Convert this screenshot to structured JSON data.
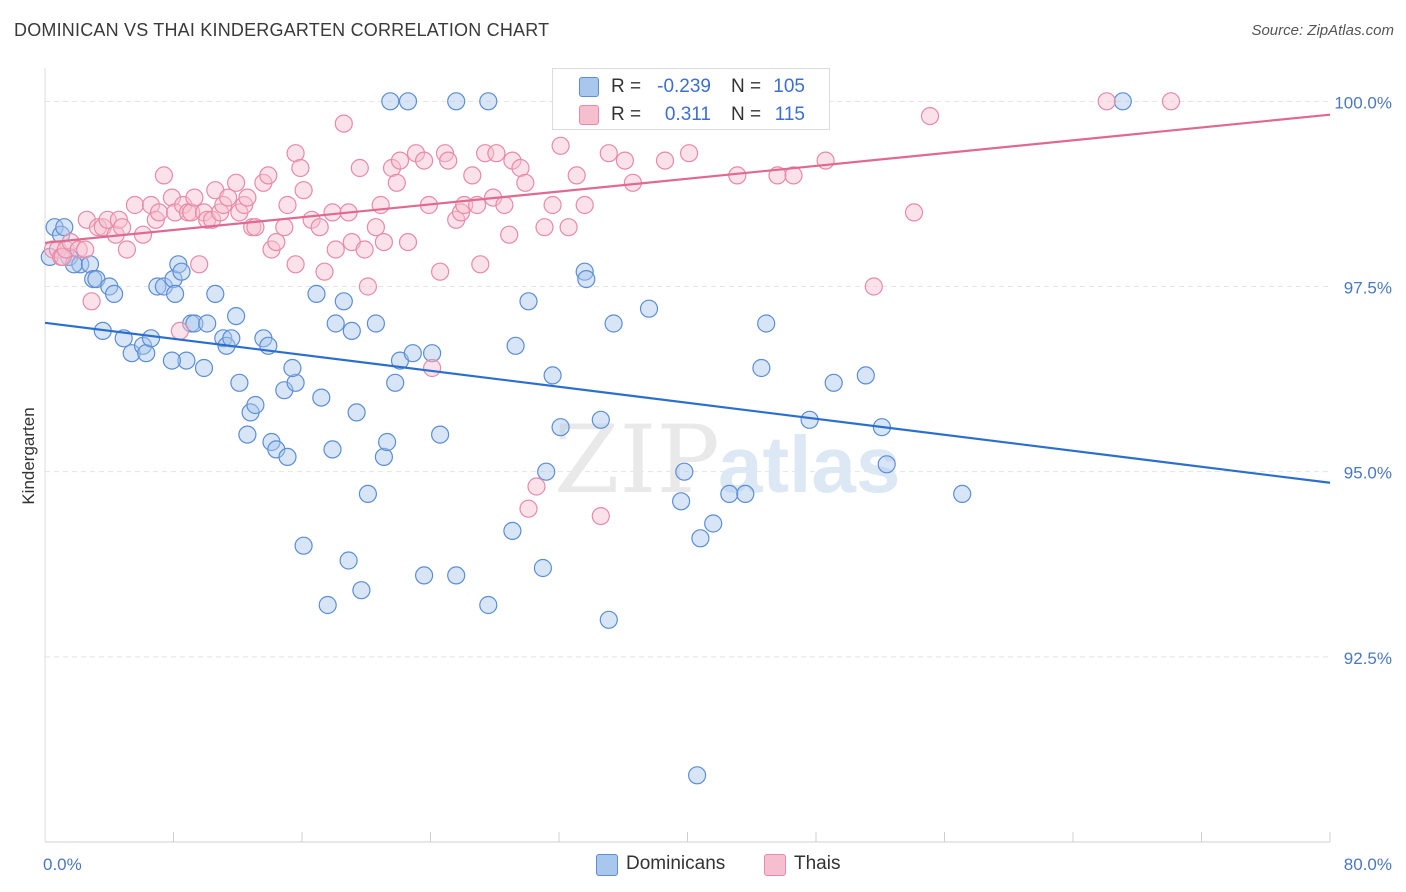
{
  "header": {
    "title": "DOMINICAN VS THAI KINDERGARTEN CORRELATION CHART",
    "source": "Source: ZipAtlas.com"
  },
  "watermark": {
    "zip": "ZIP",
    "atlas": "atlas"
  },
  "legend_stats": {
    "rows": [
      {
        "r_label": "R =",
        "r_value": "-0.239",
        "n_label": "N =",
        "n_value": "105"
      },
      {
        "r_label": "R =",
        "r_value": "0.311",
        "n_label": "N =",
        "n_value": "115"
      }
    ]
  },
  "legend": {
    "items": [
      "Dominicans",
      "Thais"
    ]
  },
  "colors": {
    "blue_fill": "#a9c6ec",
    "blue_stroke": "#5b8ed6",
    "blue_line": "#2a6fd0",
    "pink_fill": "#f6bfd0",
    "pink_stroke": "#e88aa8",
    "pink_line": "#e06992",
    "tick_label": "#4a78c2",
    "grid": "#e4e4e4",
    "value_text": "#3d6fcf"
  },
  "chart_data": {
    "type": "scatter",
    "title": "DOMINICAN VS THAI KINDERGARTEN CORRELATION CHART",
    "ylabel": "Kindergarten",
    "xlabel": "",
    "xlim": [
      0,
      80
    ],
    "ylim": [
      90.0,
      100.45
    ],
    "x_tick_labels": [
      {
        "value": 0,
        "label": "0.0%"
      },
      {
        "value": 80,
        "label": "80.0%"
      }
    ],
    "y_tick_labels": [
      {
        "value": 100,
        "label": "100.0%"
      },
      {
        "value": 97.5,
        "label": "97.5%"
      },
      {
        "value": 95,
        "label": "95.0%"
      },
      {
        "value": 92.5,
        "label": "92.5%"
      }
    ],
    "grid": true,
    "legend_position": "bottom-center",
    "series": [
      {
        "name": "Dominicans",
        "r": -0.239,
        "n": 105,
        "trend": {
          "x": [
            0,
            80
          ],
          "y": [
            97.01,
            94.85
          ]
        },
        "points": [
          [
            0.3,
            97.9
          ],
          [
            0.6,
            98.3
          ],
          [
            1,
            98.2
          ],
          [
            1.2,
            98.3
          ],
          [
            1.5,
            97.9
          ],
          [
            2.2,
            97.8
          ],
          [
            1.8,
            97.8
          ],
          [
            2.8,
            97.8
          ],
          [
            3,
            97.6
          ],
          [
            3.2,
            97.6
          ],
          [
            4,
            97.5
          ],
          [
            4.3,
            97.4
          ],
          [
            3.6,
            96.9
          ],
          [
            4.9,
            96.8
          ],
          [
            5.4,
            96.6
          ],
          [
            6.1,
            96.7
          ],
          [
            6.3,
            96.6
          ],
          [
            7,
            97.5
          ],
          [
            7.4,
            97.5
          ],
          [
            8,
            97.6
          ],
          [
            8.1,
            97.4
          ],
          [
            8.3,
            97.8
          ],
          [
            8.5,
            97.7
          ],
          [
            8.8,
            96.5
          ],
          [
            9.1,
            97
          ],
          [
            9.3,
            97
          ],
          [
            10.1,
            97
          ],
          [
            9.9,
            96.4
          ],
          [
            10.6,
            97.4
          ],
          [
            11.1,
            96.8
          ],
          [
            11.3,
            96.7
          ],
          [
            11.6,
            96.8
          ],
          [
            12.1,
            96.2
          ],
          [
            12.6,
            95.5
          ],
          [
            12.8,
            95.8
          ],
          [
            13.1,
            95.9
          ],
          [
            13.6,
            96.8
          ],
          [
            13.9,
            96.7
          ],
          [
            14.1,
            95.4
          ],
          [
            14.4,
            95.3
          ],
          [
            14.9,
            96.1
          ],
          [
            15.1,
            95.2
          ],
          [
            15.6,
            96.2
          ],
          [
            15.4,
            96.4
          ],
          [
            16.1,
            94
          ],
          [
            16.9,
            97.4
          ],
          [
            17.2,
            96
          ],
          [
            17.6,
            93.2
          ],
          [
            17.9,
            95.3
          ],
          [
            18.1,
            97
          ],
          [
            18.6,
            97.3
          ],
          [
            18.9,
            93.8
          ],
          [
            19.1,
            96.9
          ],
          [
            19.4,
            95.8
          ],
          [
            19.7,
            93.4
          ],
          [
            20.1,
            94.7
          ],
          [
            20.6,
            97
          ],
          [
            21.1,
            95.2
          ],
          [
            21.3,
            95.4
          ],
          [
            21.8,
            96.2
          ],
          [
            22.1,
            96.5
          ],
          [
            22.9,
            96.6
          ],
          [
            23.6,
            93.6
          ],
          [
            24.1,
            96.6
          ],
          [
            24.6,
            95.5
          ],
          [
            25.6,
            93.6
          ],
          [
            27.6,
            93.2
          ],
          [
            29.1,
            94.2
          ],
          [
            29.3,
            96.7
          ],
          [
            30.1,
            97.3
          ],
          [
            31,
            93.7
          ],
          [
            31.2,
            95
          ],
          [
            31.6,
            96.3
          ],
          [
            32.1,
            95.6
          ],
          [
            33.6,
            97.7
          ],
          [
            33.7,
            97.6
          ],
          [
            34.6,
            95.7
          ],
          [
            35.1,
            93
          ],
          [
            35.4,
            97
          ],
          [
            37.6,
            97.2
          ],
          [
            39.6,
            94.6
          ],
          [
            39.8,
            95
          ],
          [
            40.6,
            90.9
          ],
          [
            40.8,
            94.1
          ],
          [
            41.6,
            94.3
          ],
          [
            42.6,
            94.7
          ],
          [
            43.6,
            94.7
          ],
          [
            44.6,
            96.4
          ],
          [
            44.9,
            97
          ],
          [
            47.6,
            95.7
          ],
          [
            49.1,
            96.2
          ],
          [
            51.1,
            96.3
          ],
          [
            52.1,
            95.6
          ],
          [
            52.4,
            95.1
          ],
          [
            57.1,
            94.7
          ],
          [
            21.5,
            100
          ],
          [
            22.6,
            100
          ],
          [
            25.6,
            100
          ],
          [
            27.6,
            100
          ],
          [
            67.1,
            100
          ],
          [
            6.6,
            96.8
          ],
          [
            7.9,
            96.5
          ],
          [
            11.9,
            97.1
          ]
        ]
      },
      {
        "name": "Thais",
        "r": 0.311,
        "n": 115,
        "trend": {
          "x": [
            0,
            80
          ],
          "y": [
            98.09,
            99.82
          ]
        },
        "points": [
          [
            0.5,
            98
          ],
          [
            0.8,
            98
          ],
          [
            1,
            97.9
          ],
          [
            1.1,
            97.9
          ],
          [
            1.3,
            98
          ],
          [
            1.6,
            98.1
          ],
          [
            2.1,
            98
          ],
          [
            2.5,
            98
          ],
          [
            2.6,
            98.4
          ],
          [
            2.9,
            97.3
          ],
          [
            3.3,
            98.3
          ],
          [
            3.6,
            98.3
          ],
          [
            3.9,
            98.4
          ],
          [
            4.4,
            98.2
          ],
          [
            4.6,
            98.4
          ],
          [
            4.8,
            98.3
          ],
          [
            5.1,
            98
          ],
          [
            5.6,
            98.6
          ],
          [
            6.1,
            98.2
          ],
          [
            6.6,
            98.6
          ],
          [
            6.9,
            98.4
          ],
          [
            7.1,
            98.5
          ],
          [
            7.4,
            99
          ],
          [
            7.9,
            98.7
          ],
          [
            8.1,
            98.5
          ],
          [
            8.4,
            96.9
          ],
          [
            8.6,
            98.6
          ],
          [
            8.9,
            98.5
          ],
          [
            9.1,
            98.5
          ],
          [
            9.3,
            98.7
          ],
          [
            9.6,
            97.8
          ],
          [
            9.9,
            98.5
          ],
          [
            10.1,
            98.4
          ],
          [
            10.4,
            98.4
          ],
          [
            10.6,
            98.8
          ],
          [
            10.9,
            98.5
          ],
          [
            11.1,
            98.6
          ],
          [
            11.4,
            98.7
          ],
          [
            11.9,
            98.9
          ],
          [
            12.1,
            98.5
          ],
          [
            12.4,
            98.6
          ],
          [
            12.6,
            98.7
          ],
          [
            12.9,
            98.3
          ],
          [
            13.1,
            98.3
          ],
          [
            13.6,
            98.9
          ],
          [
            13.9,
            99
          ],
          [
            14.1,
            98
          ],
          [
            14.4,
            98.1
          ],
          [
            14.9,
            98.3
          ],
          [
            15.1,
            98.6
          ],
          [
            15.6,
            97.8
          ],
          [
            15.6,
            99.3
          ],
          [
            15.9,
            99.1
          ],
          [
            16.1,
            98.8
          ],
          [
            16.6,
            98.4
          ],
          [
            17.1,
            98.3
          ],
          [
            17.4,
            97.7
          ],
          [
            17.9,
            98.5
          ],
          [
            18.1,
            98
          ],
          [
            18.6,
            99.7
          ],
          [
            18.9,
            98.5
          ],
          [
            19.1,
            98.1
          ],
          [
            19.6,
            99.1
          ],
          [
            19.9,
            98
          ],
          [
            20.1,
            97.5
          ],
          [
            20.6,
            98.3
          ],
          [
            20.9,
            98.6
          ],
          [
            21.1,
            98.1
          ],
          [
            21.6,
            99.1
          ],
          [
            21.9,
            98.9
          ],
          [
            22.1,
            99.2
          ],
          [
            22.6,
            98.1
          ],
          [
            23.1,
            99.3
          ],
          [
            23.6,
            99.2
          ],
          [
            23.9,
            98.6
          ],
          [
            24.1,
            96.4
          ],
          [
            24.6,
            97.7
          ],
          [
            24.9,
            99.3
          ],
          [
            25.1,
            99.2
          ],
          [
            25.6,
            98.4
          ],
          [
            25.9,
            98.5
          ],
          [
            26.1,
            98.6
          ],
          [
            26.6,
            99
          ],
          [
            26.9,
            98.6
          ],
          [
            27.1,
            97.8
          ],
          [
            27.4,
            99.3
          ],
          [
            27.9,
            98.7
          ],
          [
            28.1,
            99.3
          ],
          [
            28.6,
            98.6
          ],
          [
            28.9,
            98.2
          ],
          [
            29.1,
            99.2
          ],
          [
            29.6,
            99.1
          ],
          [
            29.9,
            98.9
          ],
          [
            30.1,
            94.5
          ],
          [
            30.6,
            94.8
          ],
          [
            31.1,
            98.3
          ],
          [
            31.6,
            98.6
          ],
          [
            32.1,
            99.4
          ],
          [
            32.6,
            98.3
          ],
          [
            33.1,
            99
          ],
          [
            33.6,
            98.6
          ],
          [
            34.6,
            94.4
          ],
          [
            35.1,
            99.3
          ],
          [
            36.1,
            99.2
          ],
          [
            36.6,
            98.9
          ],
          [
            38.6,
            99.2
          ],
          [
            40.1,
            99.3
          ],
          [
            43.1,
            99
          ],
          [
            45.6,
            99
          ],
          [
            46.6,
            99
          ],
          [
            48.6,
            99.2
          ],
          [
            51.6,
            97.5
          ],
          [
            54.1,
            98.5
          ],
          [
            55.1,
            99.8
          ],
          [
            66.1,
            100
          ],
          [
            70.1,
            100
          ]
        ]
      }
    ]
  }
}
